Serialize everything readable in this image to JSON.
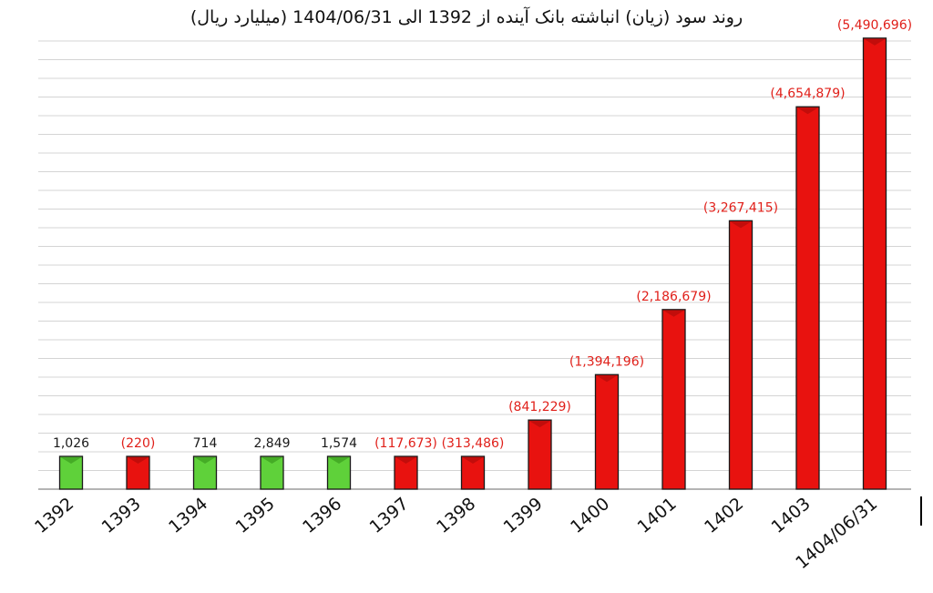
{
  "chart_data": {
    "type": "bar",
    "title": "روند سود (زیان) انباشته بانک آینده از 1392 الی 1404/06/31 (میلیارد ریال)",
    "categories": [
      "1392",
      "1393",
      "1394",
      "1395",
      "1396",
      "1397",
      "1398",
      "1399",
      "1400",
      "1401",
      "1402",
      "1403",
      "1404/06/31"
    ],
    "values": [
      1026,
      -220,
      714,
      2849,
      1574,
      -117673,
      -313486,
      -841229,
      -1394196,
      -2186679,
      -3267415,
      -4654879,
      -5490696
    ],
    "value_labels": [
      "1,026",
      "(220)",
      "714",
      "2,849",
      "1,574",
      "(117,673)",
      "(313,486)",
      "(841,229)",
      "(1,394,196)",
      "(2,186,679)",
      "(3,267,415)",
      "(4,654,879)",
      "(5,490,696)"
    ],
    "bar_magnitude_scale": "absolute value",
    "ylim": [
      0,
      5600000
    ],
    "grid": true,
    "legend": "none",
    "colors": {
      "profit": "#5fd13a",
      "loss": "#e8120f",
      "profit_label": "#1a1a1a",
      "loss_label": "#e0201a"
    }
  }
}
